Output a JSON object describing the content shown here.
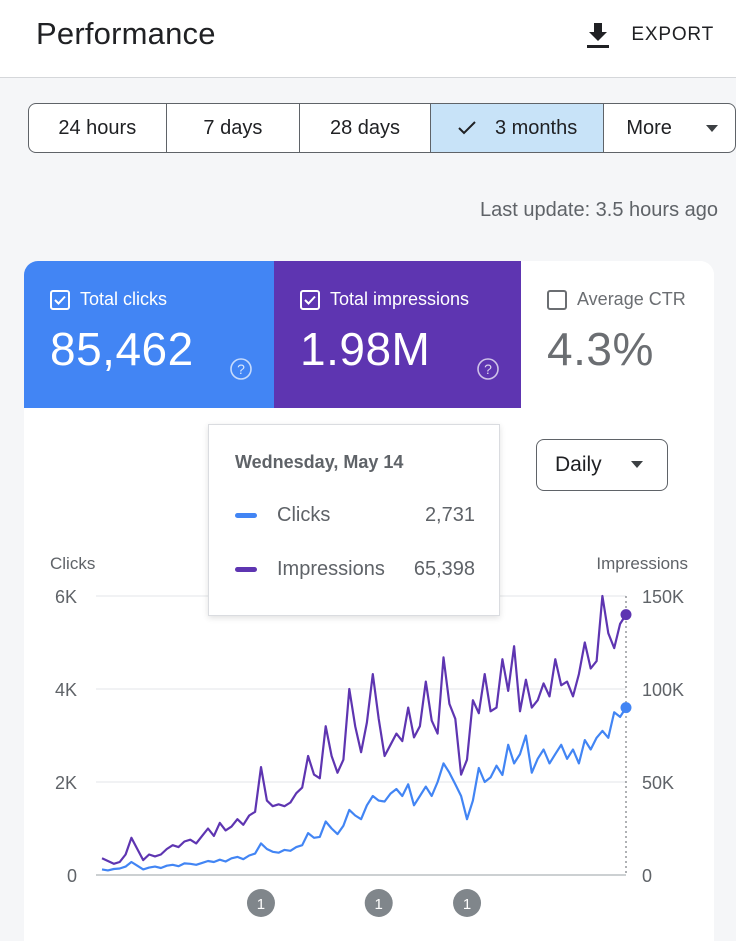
{
  "header": {
    "title": "Performance",
    "export_label": "EXPORT",
    "export_icon": "download-icon"
  },
  "ranges": {
    "items": [
      "24 hours",
      "7 days",
      "28 days",
      "3 months",
      "More"
    ],
    "selected_index": 3
  },
  "last_update": "Last update: 3.5 hours ago",
  "metrics": {
    "clicks": {
      "label": "Total clicks",
      "value": "85,462",
      "checked": true,
      "color": "#4285f4"
    },
    "impressions": {
      "label": "Total impressions",
      "value": "1.98M",
      "checked": true,
      "color": "#5e35b1"
    },
    "ctr": {
      "label": "Average CTR",
      "value": "4.3%",
      "checked": false
    }
  },
  "granularity": {
    "selected": "Daily"
  },
  "tooltip": {
    "date": "Wednesday, May 14",
    "rows": [
      {
        "name": "Clicks",
        "value": "2,731",
        "color": "#4285f4"
      },
      {
        "name": "Impressions",
        "value": "65,398",
        "color": "#5e35b1"
      }
    ]
  },
  "chart_data": {
    "type": "line",
    "x_count": 90,
    "left_axis": {
      "label": "Clicks",
      "ticks": [
        "0",
        "2K",
        "4K",
        "6K"
      ],
      "range": [
        0,
        6000
      ]
    },
    "right_axis": {
      "label": "Impressions",
      "ticks": [
        "0",
        "50K",
        "100K",
        "150K"
      ],
      "range": [
        0,
        150000
      ]
    },
    "grid": true,
    "annotations": [
      {
        "x_index": 27,
        "label": "1"
      },
      {
        "x_index": 47,
        "label": "1"
      },
      {
        "x_index": 62,
        "label": "1"
      }
    ],
    "series": [
      {
        "name": "Clicks",
        "axis": "left",
        "color": "#4285f4",
        "values": [
          120,
          100,
          130,
          140,
          180,
          280,
          200,
          120,
          160,
          180,
          150,
          200,
          220,
          190,
          250,
          240,
          220,
          260,
          300,
          280,
          330,
          290,
          360,
          390,
          340,
          420,
          460,
          680,
          560,
          500,
          480,
          540,
          520,
          600,
          640,
          900,
          800,
          820,
          1150,
          1000,
          880,
          1060,
          1400,
          1280,
          1200,
          1500,
          1700,
          1600,
          1580,
          1750,
          1850,
          1700,
          1950,
          1500,
          1700,
          1900,
          1700,
          2000,
          2400,
          2200,
          1950,
          1700,
          1200,
          1600,
          2300,
          2000,
          2100,
          2350,
          2150,
          2800,
          2400,
          2600,
          3000,
          2200,
          2500,
          2700,
          2400,
          2600,
          2800,
          2500,
          2700,
          2400,
          2900,
          2700,
          2950,
          3100,
          2950,
          3500,
          3400,
          3600
        ]
      },
      {
        "name": "Impressions",
        "axis": "right",
        "color": "#5e35b1",
        "values": [
          9000,
          7500,
          6000,
          7000,
          11000,
          20000,
          14000,
          8000,
          11000,
          10000,
          11000,
          14000,
          16000,
          15000,
          18000,
          19000,
          17000,
          21000,
          25000,
          21000,
          28000,
          24000,
          26000,
          30000,
          27000,
          32000,
          34000,
          58000,
          40000,
          37000,
          38000,
          37000,
          39000,
          44000,
          47000,
          64000,
          54000,
          52000,
          80000,
          64000,
          55000,
          62000,
          100000,
          80000,
          66000,
          82000,
          108000,
          84000,
          64000,
          70000,
          76000,
          72000,
          90000,
          74000,
          80000,
          104000,
          83000,
          76000,
          117000,
          92000,
          84000,
          54000,
          62000,
          94000,
          87000,
          108000,
          88000,
          90000,
          116000,
          99000,
          123000,
          88000,
          105000,
          90000,
          94000,
          103000,
          96000,
          116000,
          102000,
          104000,
          96000,
          108000,
          125000,
          111000,
          115000,
          150000,
          130000,
          122000,
          135000,
          140000
        ]
      }
    ]
  }
}
